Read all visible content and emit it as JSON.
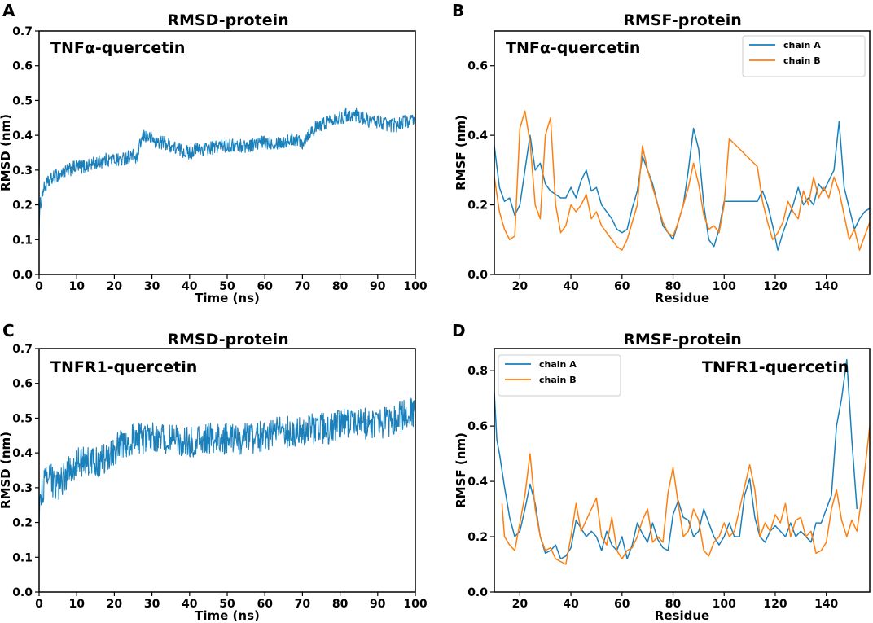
{
  "colors": {
    "chain_a": "#1a80bb",
    "chain_b": "#ff7f0e",
    "rmsd": "#1a80bb"
  },
  "chart_data": [
    {
      "panel": "A",
      "type": "line",
      "title": "RMSD-protein",
      "annotation": "TNFα-quercetin",
      "xlabel": "Time (ns)",
      "ylabel": "RMSD (nm)",
      "xlim": [
        0,
        100
      ],
      "ylim": [
        0,
        0.7
      ],
      "xticks": [
        0,
        10,
        20,
        30,
        40,
        50,
        60,
        70,
        80,
        90,
        100
      ],
      "yticks": [
        0.0,
        0.1,
        0.2,
        0.3,
        0.4,
        0.5,
        0.6,
        0.7
      ],
      "legend": null,
      "series": [
        {
          "name": "RMSD",
          "noise": 0.02,
          "x": [
            0,
            0.3,
            1,
            2,
            4,
            6,
            8,
            10,
            12,
            15,
            18,
            20,
            22,
            24,
            25,
            26,
            27,
            28,
            30,
            31,
            33,
            35,
            37,
            40,
            42,
            45,
            48,
            50,
            55,
            60,
            65,
            68,
            70,
            72,
            75,
            78,
            80,
            82,
            84,
            86,
            88,
            90,
            93,
            95,
            97,
            100
          ],
          "y": [
            0.13,
            0.2,
            0.24,
            0.26,
            0.28,
            0.29,
            0.3,
            0.31,
            0.31,
            0.32,
            0.33,
            0.33,
            0.33,
            0.34,
            0.34,
            0.33,
            0.38,
            0.4,
            0.39,
            0.38,
            0.38,
            0.37,
            0.36,
            0.35,
            0.36,
            0.36,
            0.37,
            0.37,
            0.37,
            0.38,
            0.38,
            0.39,
            0.38,
            0.41,
            0.43,
            0.45,
            0.45,
            0.46,
            0.46,
            0.45,
            0.44,
            0.44,
            0.43,
            0.43,
            0.44,
            0.44
          ]
        }
      ]
    },
    {
      "panel": "B",
      "type": "line",
      "title": "RMSF-protein",
      "annotation": "TNFα-quercetin",
      "xlabel": "Residue",
      "ylabel": "RMSF (nm)",
      "xlim": [
        10,
        157
      ],
      "ylim": [
        0,
        0.7
      ],
      "xticks": [
        20,
        40,
        60,
        80,
        100,
        120,
        140
      ],
      "yticks": [
        0.0,
        0.2,
        0.4,
        0.6
      ],
      "legend": "top-right",
      "series": [
        {
          "name": "chain A",
          "x": [
            10,
            12,
            14,
            16,
            18,
            20,
            22,
            24,
            26,
            28,
            30,
            32,
            34,
            36,
            38,
            40,
            42,
            44,
            46,
            48,
            50,
            52,
            54,
            56,
            58,
            60,
            62,
            64,
            66,
            68,
            70,
            72,
            74,
            76,
            78,
            80,
            82,
            84,
            86,
            88,
            90,
            92,
            94,
            96,
            98,
            100,
            113,
            115,
            117,
            119,
            121,
            123,
            125,
            127,
            129,
            131,
            133,
            135,
            137,
            139,
            141,
            143,
            145,
            147,
            149,
            151,
            153,
            155,
            157
          ],
          "y": [
            0.37,
            0.25,
            0.21,
            0.22,
            0.17,
            0.2,
            0.3,
            0.4,
            0.3,
            0.32,
            0.26,
            0.24,
            0.23,
            0.22,
            0.22,
            0.25,
            0.22,
            0.27,
            0.3,
            0.24,
            0.25,
            0.2,
            0.18,
            0.16,
            0.13,
            0.12,
            0.13,
            0.19,
            0.24,
            0.34,
            0.3,
            0.26,
            0.2,
            0.14,
            0.12,
            0.1,
            0.15,
            0.2,
            0.3,
            0.42,
            0.36,
            0.2,
            0.1,
            0.08,
            0.13,
            0.21,
            0.21,
            0.24,
            0.2,
            0.14,
            0.07,
            0.12,
            0.16,
            0.2,
            0.25,
            0.2,
            0.22,
            0.2,
            0.26,
            0.24,
            0.27,
            0.3,
            0.44,
            0.25,
            0.19,
            0.13,
            0.16,
            0.18,
            0.19
          ]
        },
        {
          "name": "chain B",
          "x": [
            10,
            12,
            14,
            16,
            18,
            20,
            22,
            24,
            26,
            28,
            30,
            32,
            34,
            36,
            38,
            40,
            42,
            44,
            46,
            48,
            50,
            52,
            54,
            56,
            58,
            60,
            62,
            64,
            66,
            68,
            70,
            72,
            74,
            76,
            78,
            80,
            82,
            84,
            86,
            88,
            90,
            92,
            94,
            96,
            98,
            100,
            102,
            113,
            115,
            117,
            119,
            121,
            123,
            125,
            127,
            129,
            131,
            133,
            135,
            137,
            139,
            141,
            143,
            145,
            147,
            149,
            151,
            153,
            155,
            157
          ],
          "y": [
            0.28,
            0.18,
            0.13,
            0.1,
            0.11,
            0.42,
            0.47,
            0.38,
            0.2,
            0.16,
            0.4,
            0.45,
            0.2,
            0.12,
            0.14,
            0.2,
            0.18,
            0.2,
            0.23,
            0.16,
            0.18,
            0.14,
            0.12,
            0.1,
            0.08,
            0.07,
            0.1,
            0.15,
            0.2,
            0.37,
            0.3,
            0.25,
            0.2,
            0.15,
            0.12,
            0.11,
            0.15,
            0.2,
            0.25,
            0.32,
            0.26,
            0.17,
            0.13,
            0.14,
            0.12,
            0.2,
            0.39,
            0.31,
            0.21,
            0.15,
            0.1,
            0.12,
            0.15,
            0.21,
            0.18,
            0.16,
            0.24,
            0.2,
            0.28,
            0.22,
            0.25,
            0.22,
            0.28,
            0.24,
            0.17,
            0.1,
            0.13,
            0.07,
            0.11,
            0.15
          ]
        }
      ]
    },
    {
      "panel": "C",
      "type": "line",
      "title": "RMSD-protein",
      "annotation": "TNFR1-quercetin",
      "xlabel": "Time (ns)",
      "ylabel": "RMSD (nm)",
      "xlim": [
        0,
        100
      ],
      "ylim": [
        0,
        0.7
      ],
      "xticks": [
        0,
        10,
        20,
        30,
        40,
        50,
        60,
        70,
        80,
        90,
        100
      ],
      "yticks": [
        0.0,
        0.1,
        0.2,
        0.3,
        0.4,
        0.5,
        0.6,
        0.7
      ],
      "legend": null,
      "series": [
        {
          "name": "RMSD",
          "noise": 0.045,
          "x": [
            0,
            0.3,
            1,
            2,
            3,
            4,
            5,
            6,
            8,
            10,
            12,
            15,
            18,
            20,
            23,
            25,
            28,
            30,
            33,
            35,
            38,
            40,
            45,
            50,
            55,
            60,
            63,
            65,
            68,
            70,
            73,
            75,
            78,
            80,
            83,
            85,
            88,
            90,
            93,
            95,
            98,
            100
          ],
          "y": [
            0.2,
            0.26,
            0.3,
            0.32,
            0.33,
            0.31,
            0.3,
            0.32,
            0.35,
            0.37,
            0.38,
            0.37,
            0.39,
            0.41,
            0.43,
            0.44,
            0.44,
            0.45,
            0.44,
            0.44,
            0.43,
            0.43,
            0.44,
            0.44,
            0.44,
            0.45,
            0.46,
            0.46,
            0.46,
            0.46,
            0.47,
            0.47,
            0.47,
            0.48,
            0.49,
            0.49,
            0.48,
            0.48,
            0.49,
            0.5,
            0.51,
            0.52
          ]
        }
      ]
    },
    {
      "panel": "D",
      "type": "line",
      "title": "RMSF-protein",
      "annotation": "TNFR1-quercetin",
      "xlabel": "Residue",
      "ylabel": "RMSF (nm)",
      "xlim": [
        10,
        157
      ],
      "ylim": [
        0,
        0.88
      ],
      "xticks": [
        20,
        40,
        60,
        80,
        100,
        120,
        140
      ],
      "yticks": [
        0.0,
        0.2,
        0.4,
        0.6,
        0.8
      ],
      "legend": "top-left",
      "series": [
        {
          "name": "chain A",
          "x": [
            10,
            11,
            12,
            14,
            16,
            18,
            20,
            22,
            24,
            26,
            28,
            30,
            32,
            34,
            36,
            38,
            40,
            42,
            44,
            46,
            48,
            50,
            52,
            54,
            56,
            58,
            60,
            62,
            64,
            66,
            68,
            70,
            72,
            74,
            76,
            78,
            80,
            82,
            84,
            86,
            88,
            90,
            92,
            94,
            96,
            98,
            100,
            102,
            104,
            106,
            108,
            110,
            112,
            114,
            116,
            118,
            120,
            122,
            124,
            126,
            128,
            130,
            132,
            134,
            136,
            138,
            140,
            142,
            144,
            146,
            148,
            150,
            152
          ],
          "y": [
            0.72,
            0.55,
            0.5,
            0.38,
            0.27,
            0.2,
            0.22,
            0.3,
            0.39,
            0.32,
            0.2,
            0.14,
            0.15,
            0.17,
            0.12,
            0.13,
            0.16,
            0.26,
            0.23,
            0.2,
            0.22,
            0.2,
            0.15,
            0.22,
            0.17,
            0.15,
            0.2,
            0.12,
            0.17,
            0.25,
            0.21,
            0.18,
            0.25,
            0.19,
            0.16,
            0.15,
            0.28,
            0.33,
            0.27,
            0.26,
            0.2,
            0.22,
            0.3,
            0.25,
            0.2,
            0.17,
            0.2,
            0.25,
            0.2,
            0.2,
            0.35,
            0.41,
            0.27,
            0.2,
            0.18,
            0.22,
            0.24,
            0.22,
            0.2,
            0.25,
            0.2,
            0.22,
            0.2,
            0.18,
            0.25,
            0.25,
            0.3,
            0.35,
            0.6,
            0.7,
            0.84,
            0.55,
            0.3
          ]
        },
        {
          "name": "chain B",
          "x": [
            13,
            14,
            16,
            18,
            20,
            22,
            24,
            26,
            28,
            30,
            32,
            34,
            36,
            38,
            40,
            42,
            44,
            46,
            48,
            50,
            52,
            54,
            56,
            58,
            60,
            62,
            64,
            66,
            68,
            70,
            72,
            74,
            76,
            78,
            80,
            82,
            84,
            86,
            88,
            90,
            92,
            94,
            96,
            98,
            100,
            102,
            104,
            106,
            108,
            110,
            112,
            114,
            116,
            118,
            120,
            122,
            124,
            126,
            128,
            130,
            132,
            134,
            136,
            138,
            140,
            142,
            144,
            146,
            148,
            150,
            152,
            154,
            157
          ],
          "y": [
            0.32,
            0.2,
            0.17,
            0.15,
            0.25,
            0.35,
            0.5,
            0.3,
            0.2,
            0.15,
            0.16,
            0.12,
            0.11,
            0.1,
            0.2,
            0.32,
            0.22,
            0.26,
            0.3,
            0.34,
            0.2,
            0.17,
            0.27,
            0.15,
            0.12,
            0.15,
            0.16,
            0.2,
            0.26,
            0.3,
            0.18,
            0.2,
            0.18,
            0.36,
            0.45,
            0.32,
            0.2,
            0.22,
            0.3,
            0.26,
            0.15,
            0.13,
            0.18,
            0.2,
            0.25,
            0.2,
            0.22,
            0.3,
            0.38,
            0.46,
            0.37,
            0.2,
            0.25,
            0.22,
            0.28,
            0.25,
            0.32,
            0.2,
            0.26,
            0.27,
            0.2,
            0.22,
            0.14,
            0.15,
            0.18,
            0.3,
            0.37,
            0.26,
            0.2,
            0.26,
            0.22,
            0.35,
            0.6
          ]
        }
      ]
    }
  ]
}
